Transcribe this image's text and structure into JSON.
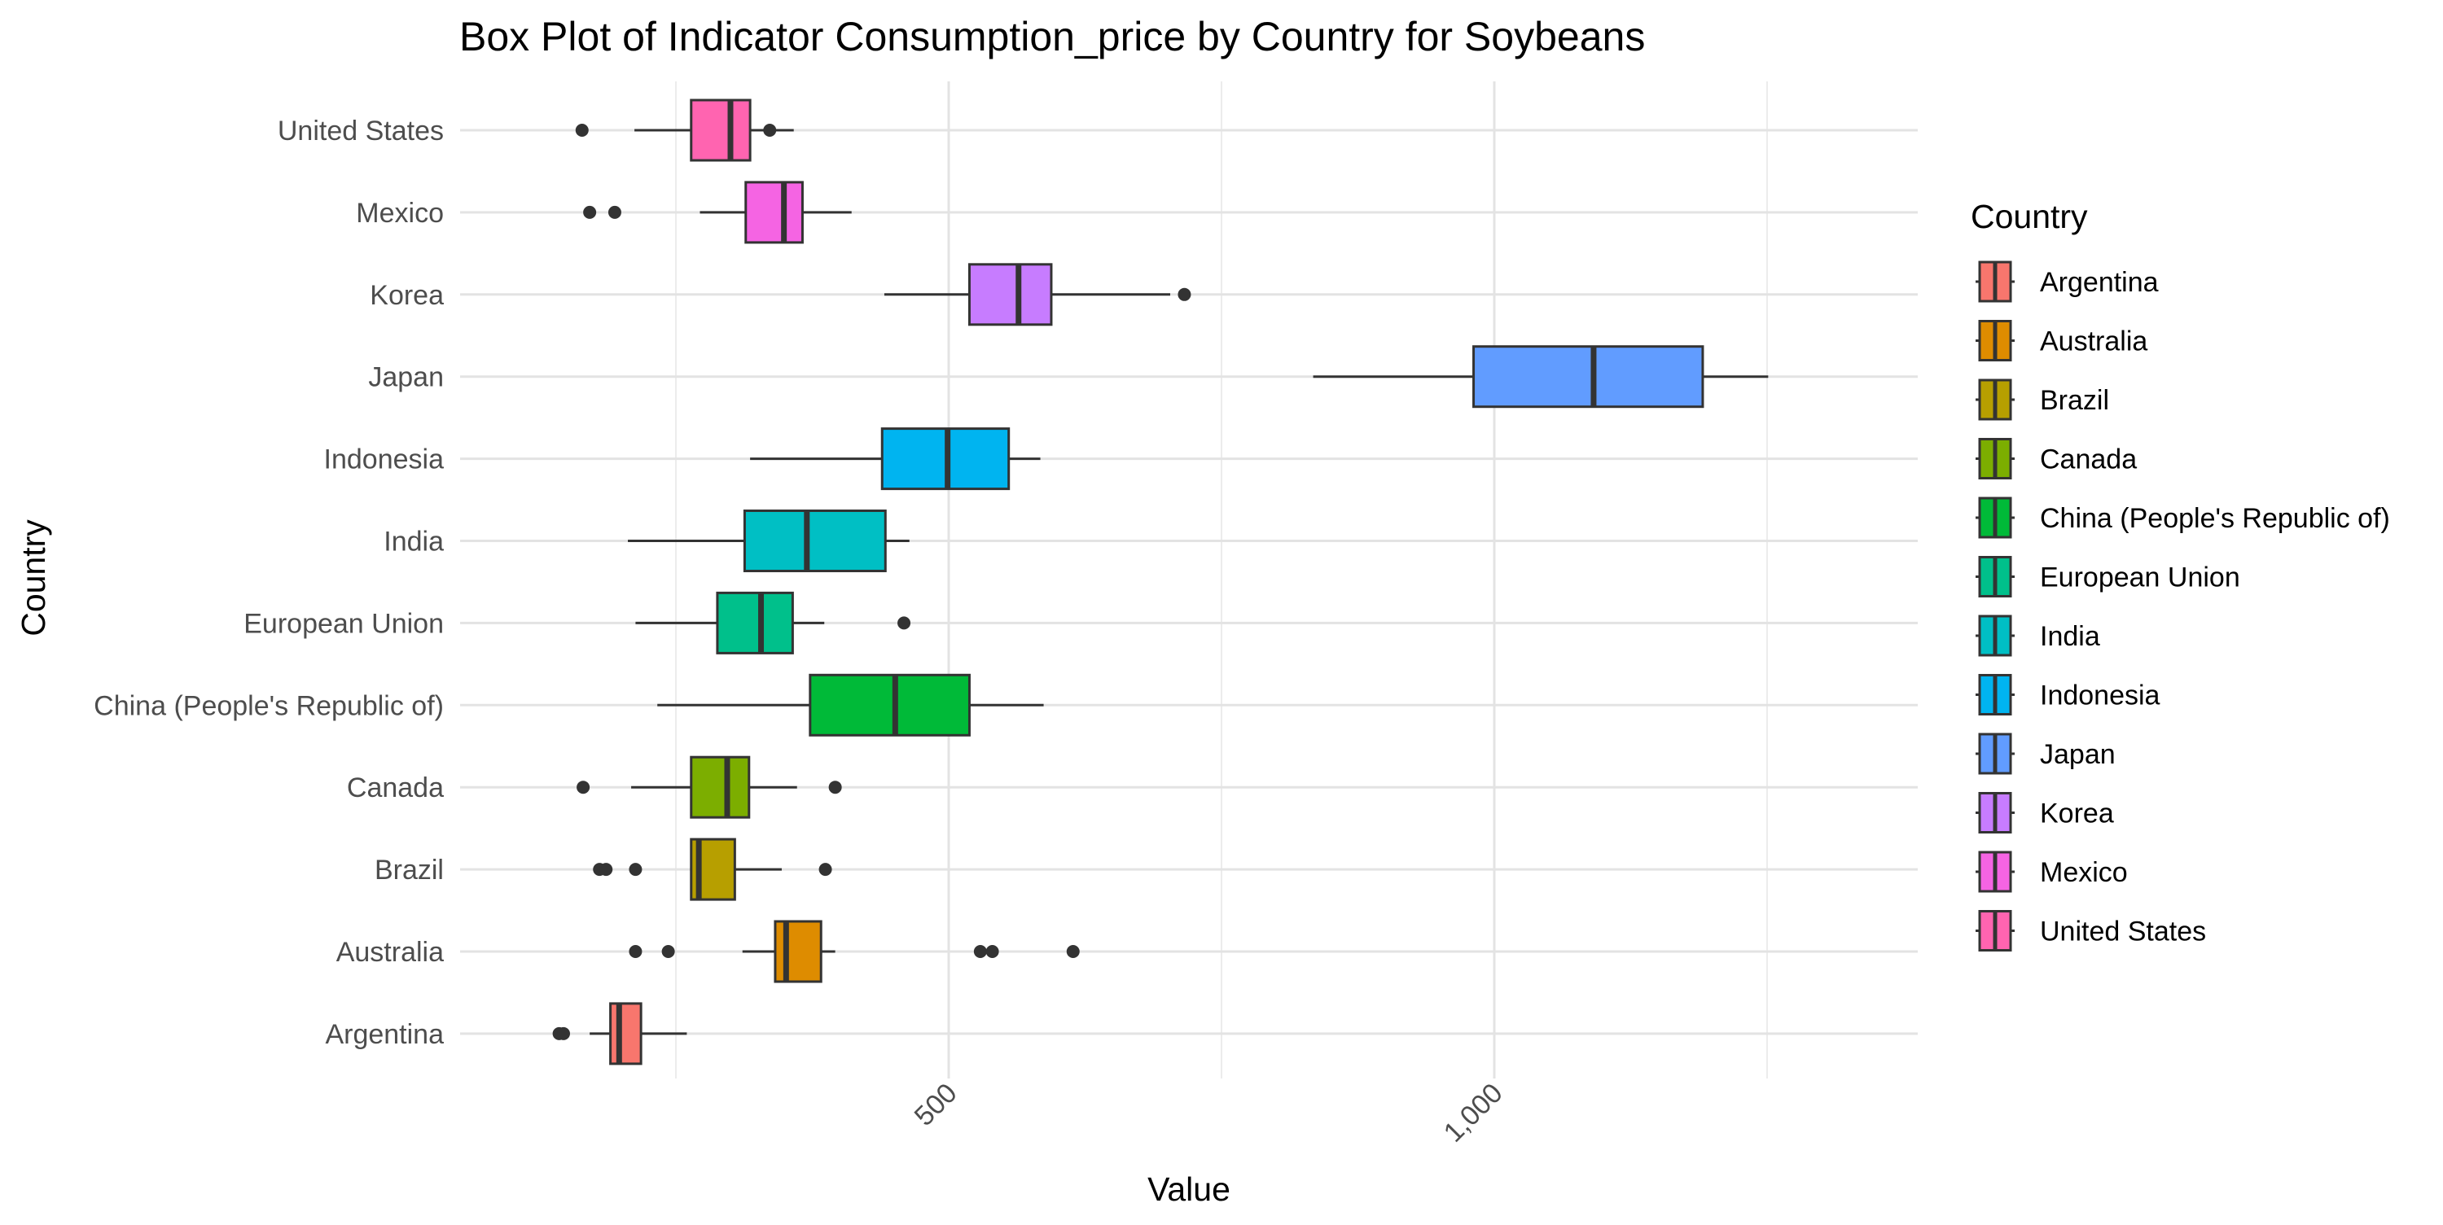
{
  "chart_data": {
    "type": "box",
    "title": "Box Plot of Indicator Consumption_price by Country for Soybeans",
    "xlabel": "Value",
    "ylabel": "Country",
    "xlim": [
      -100,
      1260
    ],
    "x_ticks": [
      500,
      1000
    ],
    "x_tick_labels": [
      "500",
      "1,000"
    ],
    "x_minor_gridlines": [
      250,
      750,
      1250
    ],
    "grid": true,
    "orientation": "horizontal",
    "legend": {
      "title": "Country",
      "placement": "right"
    },
    "categories": [
      "Argentina",
      "Australia",
      "Brazil",
      "Canada",
      "China (People's Republic of)",
      "European Union",
      "India",
      "Indonesia",
      "Japan",
      "Korea",
      "Mexico",
      "United States"
    ],
    "series": [
      {
        "name": "Argentina",
        "color": "#F8766D",
        "whisker_low": 171,
        "q1": 190,
        "median": 198,
        "q3": 218,
        "whisker_high": 260,
        "outliers": [
          143,
          147
        ]
      },
      {
        "name": "Australia",
        "color": "#DE8C00",
        "whisker_low": 311,
        "q1": 341,
        "median": 351,
        "q3": 383,
        "whisker_high": 396,
        "outliers": [
          213,
          243,
          529,
          540,
          614
        ]
      },
      {
        "name": "Brazil",
        "color": "#B79F00",
        "whisker_low": 264,
        "q1": 264,
        "median": 271,
        "q3": 304,
        "whisker_high": 347,
        "outliers": [
          180,
          186,
          213,
          387
        ]
      },
      {
        "name": "Canada",
        "color": "#7CAE00",
        "whisker_low": 209,
        "q1": 264,
        "median": 297,
        "q3": 317,
        "whisker_high": 361,
        "outliers": [
          165,
          396
        ]
      },
      {
        "name": "China (People's Republic of)",
        "color": "#00BA38",
        "whisker_low": 233,
        "q1": 373,
        "median": 451,
        "q3": 519,
        "whisker_high": 587,
        "outliers": []
      },
      {
        "name": "European Union",
        "color": "#00C08B",
        "whisker_low": 213,
        "q1": 288,
        "median": 328,
        "q3": 357,
        "whisker_high": 386,
        "outliers": [
          459
        ]
      },
      {
        "name": "India",
        "color": "#00BFC4",
        "whisker_low": 206,
        "q1": 313,
        "median": 370,
        "q3": 442,
        "whisker_high": 464,
        "outliers": []
      },
      {
        "name": "Indonesia",
        "color": "#00B4F0",
        "whisker_low": 318,
        "q1": 439,
        "median": 499,
        "q3": 555,
        "whisker_high": 584,
        "outliers": []
      },
      {
        "name": "Japan",
        "color": "#619CFF",
        "whisker_low": 834,
        "q1": 981,
        "median": 1091,
        "q3": 1191,
        "whisker_high": 1251,
        "outliers": []
      },
      {
        "name": "Korea",
        "color": "#C77CFF",
        "whisker_low": 441,
        "q1": 519,
        "median": 564,
        "q3": 594,
        "whisker_high": 703,
        "outliers": [
          716
        ]
      },
      {
        "name": "Mexico",
        "color": "#F564E3",
        "whisker_low": 272,
        "q1": 314,
        "median": 349,
        "q3": 366,
        "whisker_high": 411,
        "outliers": [
          171,
          194
        ]
      },
      {
        "name": "United States",
        "color": "#FF64B0",
        "whisker_low": 212,
        "q1": 264,
        "median": 300,
        "q3": 318,
        "whisker_high": 358,
        "outliers": [
          164,
          336
        ]
      }
    ]
  }
}
